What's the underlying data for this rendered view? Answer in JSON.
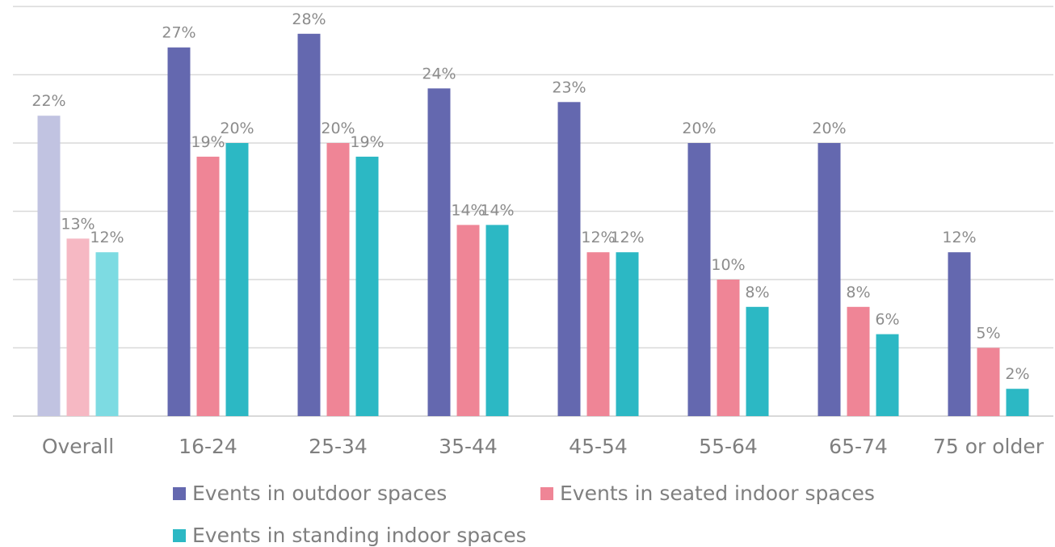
{
  "chart_data": {
    "type": "bar",
    "title": "",
    "xlabel": "",
    "ylabel": "",
    "ylim": [
      0,
      30
    ],
    "grid": true,
    "legend_position": "bottom",
    "categories": [
      "Overall",
      "16-24",
      "25-34",
      "35-44",
      "45-54",
      "55-64",
      "65-74",
      "75 or older"
    ],
    "series": [
      {
        "name": "Events in outdoor spaces",
        "color": "#6468af",
        "values": [
          22,
          27,
          28,
          24,
          23,
          20,
          20,
          12
        ],
        "labels": [
          "22%",
          "27%",
          "28%",
          "24%",
          "23%",
          "20%",
          "20%",
          "12%"
        ]
      },
      {
        "name": "Events in seated indoor spaces",
        "color": "#ef8596",
        "values": [
          13,
          19,
          20,
          14,
          12,
          10,
          8,
          5
        ],
        "labels": [
          "13%",
          "19%",
          "20%",
          "14%",
          "12%",
          "10%",
          "8%",
          "5%"
        ]
      },
      {
        "name": "Events in standing indoor spaces",
        "color": "#2cb8c4",
        "values": [
          12,
          20,
          19,
          14,
          12,
          8,
          6,
          2
        ],
        "labels": [
          "12%",
          "20%",
          "19%",
          "14%",
          "12%",
          "8%",
          "6%",
          "2%"
        ]
      }
    ],
    "overall_colors": [
      "#c1c3e1",
      "#f6b8c3",
      "#7ddbe2"
    ]
  }
}
